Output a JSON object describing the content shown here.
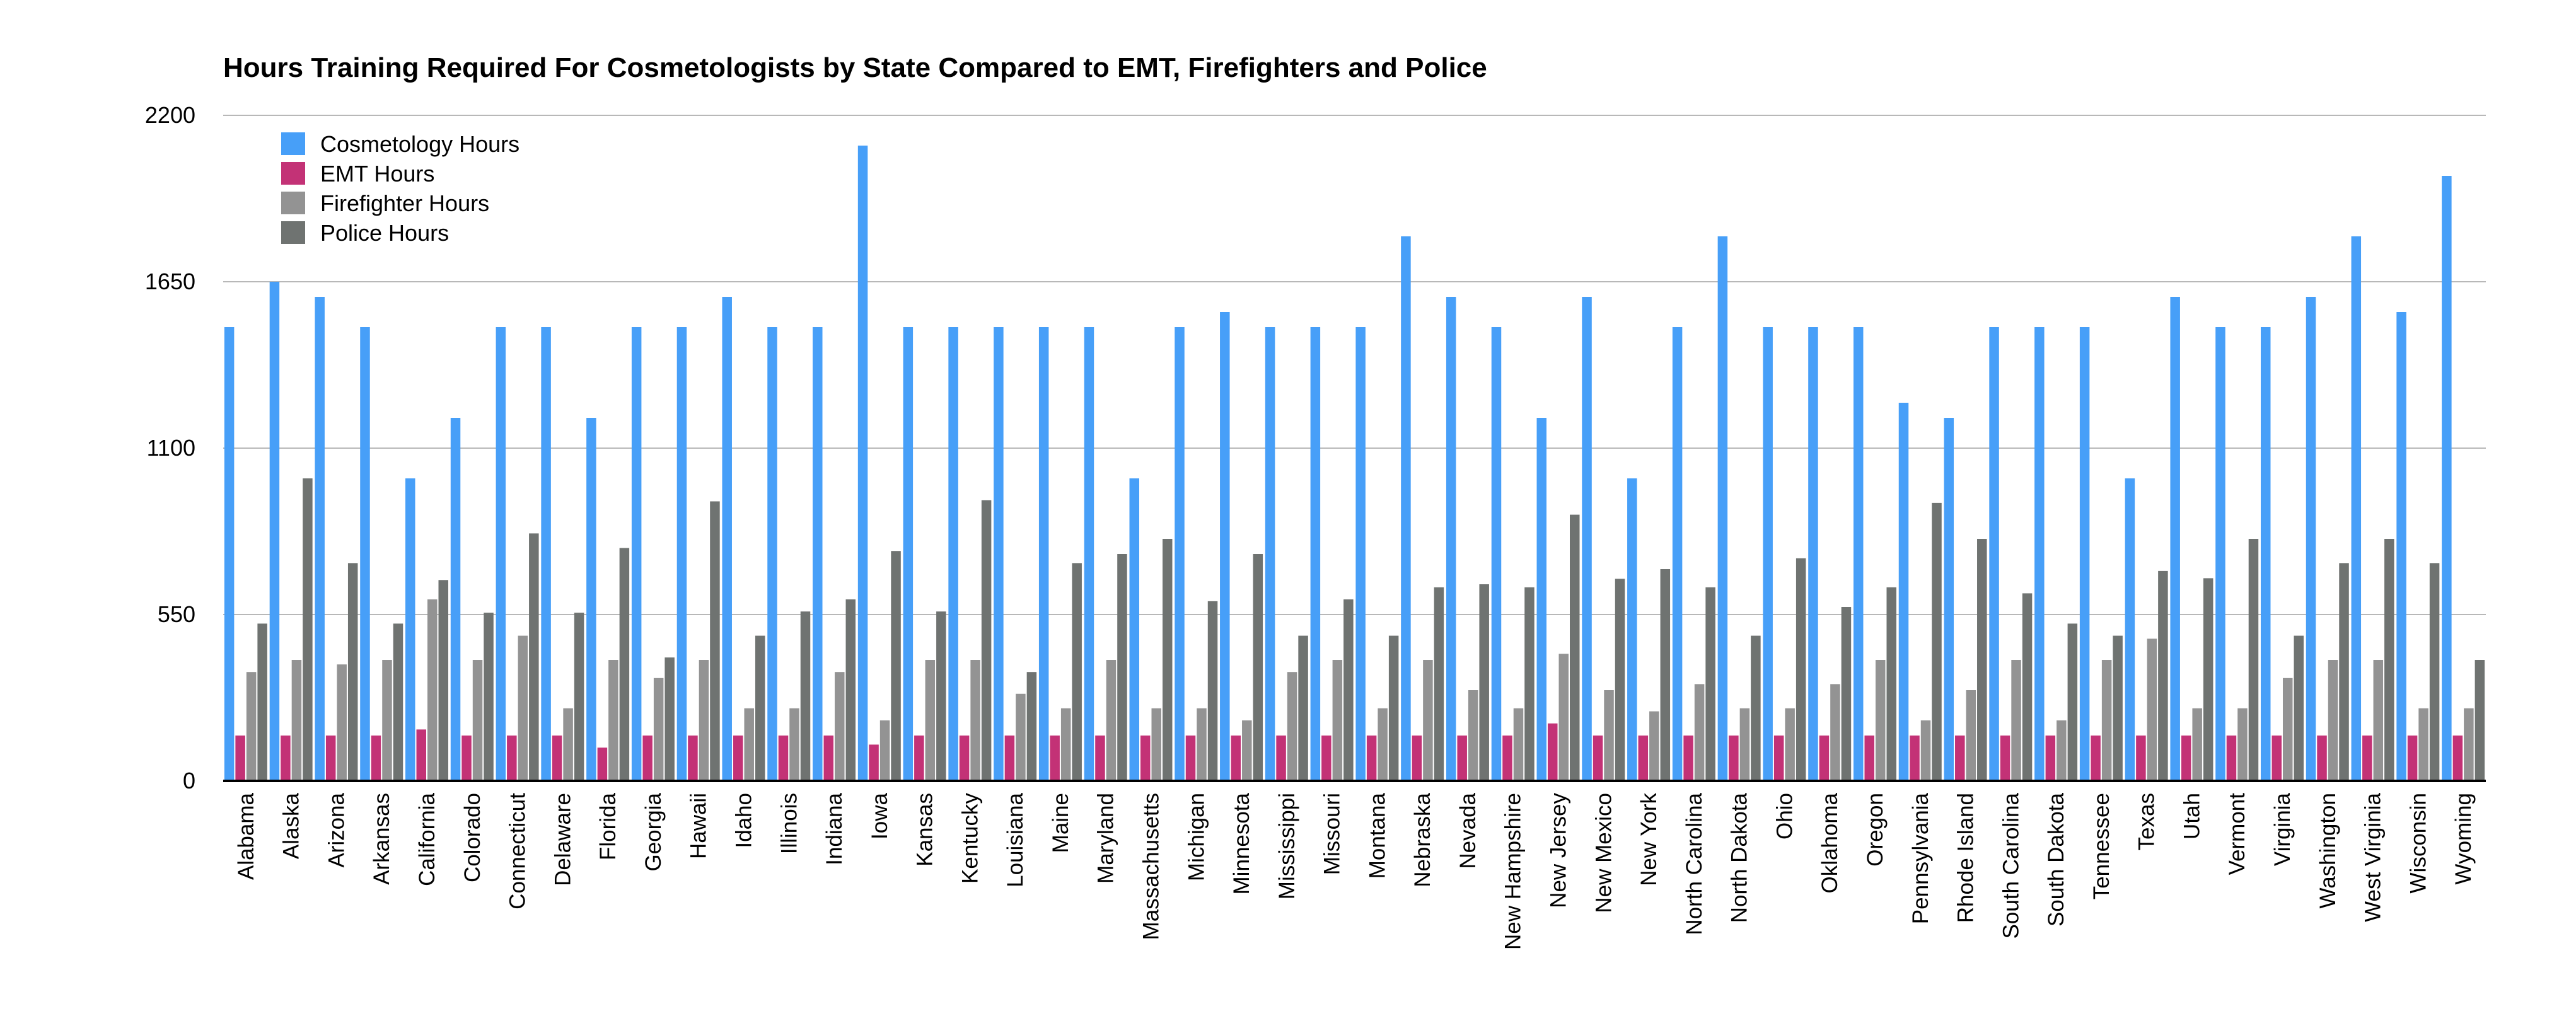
{
  "chart_data": {
    "type": "bar",
    "title": "Hours Training Required For Cosmetologists by State Compared to EMT, Firefighters and Police",
    "xlabel": "",
    "ylabel": "",
    "ylim": [
      0,
      2200
    ],
    "yticks": [
      0,
      550,
      1100,
      1650,
      2200
    ],
    "grid": true,
    "legend_position": "top-left",
    "categories": [
      "Alabama",
      "Alaska",
      "Arizona",
      "Arkansas",
      "California",
      "Colorado",
      "Connecticut",
      "Delaware",
      "Florida",
      "Georgia",
      "Hawaii",
      "Idaho",
      "Illinois",
      "Indiana",
      "Iowa",
      "Kansas",
      "Kentucky",
      "Louisiana",
      "Maine",
      "Maryland",
      "Massachusetts",
      "Michigan",
      "Minnesota",
      "Mississippi",
      "Missouri",
      "Montana",
      "Nebraska",
      "Nevada",
      "New Hampshire",
      "New Jersey",
      "New Mexico",
      "New York",
      "North Carolina",
      "North Dakota",
      "Ohio",
      "Oklahoma",
      "Oregon",
      "Pennsylvania",
      "Rhode Island",
      "South Carolina",
      "South Dakota",
      "Tennessee",
      "Texas",
      "Utah",
      "Vermont",
      "Virginia",
      "Washington",
      "West Virginia",
      "Wisconsin",
      "Wyoming"
    ],
    "series": [
      {
        "name": "Cosmetology Hours",
        "color": "#479FF8",
        "values": [
          1500,
          1650,
          1600,
          1500,
          1000,
          1200,
          1500,
          1500,
          1200,
          1500,
          1500,
          1600,
          1500,
          1500,
          2100,
          1500,
          1500,
          1500,
          1500,
          1500,
          1000,
          1500,
          1550,
          1500,
          1500,
          1500,
          1800,
          1600,
          1500,
          1200,
          1600,
          1000,
          1500,
          1800,
          1500,
          1500,
          1500,
          1250,
          1200,
          1500,
          1500,
          1500,
          1000,
          1600,
          1500,
          1500,
          1600,
          1800,
          1550,
          2000
        ]
      },
      {
        "name": "EMT Hours",
        "color": "#C33276",
        "values": [
          150,
          150,
          150,
          150,
          170,
          150,
          150,
          150,
          110,
          150,
          150,
          150,
          150,
          150,
          120,
          150,
          150,
          150,
          150,
          150,
          150,
          150,
          150,
          150,
          150,
          150,
          150,
          150,
          150,
          190,
          150,
          150,
          150,
          150,
          150,
          150,
          150,
          150,
          150,
          150,
          150,
          150,
          150,
          150,
          150,
          150,
          150,
          150,
          150,
          150
        ]
      },
      {
        "name": "Firefighter Hours",
        "color": "#939393",
        "values": [
          360,
          400,
          385,
          400,
          600,
          400,
          480,
          240,
          400,
          340,
          400,
          240,
          240,
          360,
          200,
          400,
          400,
          288,
          240,
          400,
          240,
          240,
          200,
          360,
          400,
          240,
          400,
          300,
          240,
          420,
          300,
          230,
          320,
          240,
          240,
          320,
          400,
          200,
          300,
          400,
          200,
          400,
          470,
          240,
          240,
          340,
          400,
          400,
          240,
          240
        ]
      },
      {
        "name": "Police Hours",
        "color": "#6F7371",
        "values": [
          520,
          1000,
          720,
          520,
          664,
          556,
          818,
          556,
          770,
          408,
          924,
          480,
          560,
          600,
          760,
          560,
          928,
          360,
          720,
          750,
          800,
          594,
          750,
          480,
          600,
          480,
          640,
          650,
          640,
          880,
          668,
          700,
          640,
          480,
          736,
          575,
          640,
          919,
          800,
          620,
          520,
          480,
          694,
          670,
          800,
          480,
          720,
          800,
          720,
          400
        ]
      }
    ]
  }
}
